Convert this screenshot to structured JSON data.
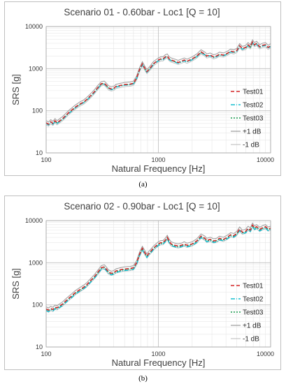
{
  "chart_data": [
    {
      "type": "line",
      "title": "Scenario 01 - 0.60bar - Loc1 [Q = 10]",
      "xlabel": "Natural Frequency [Hz]",
      "ylabel": "SRS [g]",
      "xscale": "log",
      "yscale": "log",
      "xlim": [
        100,
        10000
      ],
      "ylim": [
        10,
        10000
      ],
      "xticks": [
        "100",
        "1000",
        "10000"
      ],
      "yticks": [
        "10",
        "100",
        "1000",
        "10000"
      ],
      "grid": true,
      "legend_position": "right",
      "caption": "(a)",
      "x": [
        100,
        105,
        110,
        115,
        120,
        125,
        130,
        140,
        150,
        160,
        170,
        180,
        190,
        200,
        215,
        230,
        250,
        270,
        290,
        310,
        330,
        345,
        360,
        380,
        400,
        420,
        440,
        460,
        480,
        500,
        530,
        560,
        600,
        640,
        680,
        720,
        760,
        790,
        820,
        860,
        900,
        950,
        1000,
        1050,
        1100,
        1150,
        1200,
        1250,
        1300,
        1400,
        1500,
        1600,
        1700,
        1800,
        2000,
        2200,
        2400,
        2600,
        2700,
        2900,
        3100,
        3300,
        3500,
        3800,
        4100,
        4400,
        4700,
        5000,
        5300,
        5600,
        6000,
        6300,
        6600,
        6900,
        7200,
        7500,
        8000,
        8500,
        9000,
        9500,
        10000
      ],
      "series": [
        {
          "name": "Test01",
          "color": "#d62728",
          "dash": "5,3",
          "values": [
            52,
            48,
            55,
            50,
            58,
            52,
            56,
            65,
            78,
            92,
            105,
            120,
            132,
            145,
            160,
            185,
            230,
            285,
            360,
            440,
            450,
            400,
            350,
            330,
            340,
            380,
            390,
            400,
            410,
            420,
            425,
            430,
            450,
            600,
            950,
            1300,
            1000,
            850,
            950,
            1100,
            1300,
            1450,
            1600,
            1700,
            1700,
            1900,
            2000,
            1700,
            1600,
            1500,
            1400,
            1500,
            1600,
            1500,
            1700,
            2000,
            2500,
            2200,
            2000,
            2100,
            1900,
            2000,
            2200,
            2100,
            2300,
            2600,
            2500,
            2700,
            3500,
            3000,
            3200,
            3700,
            3300,
            4300,
            3700,
            4000,
            3300,
            3600,
            3700,
            3200,
            3500
          ]
        },
        {
          "name": "Test02",
          "color": "#17becf",
          "dash": "6,2,1,2",
          "values": [
            50,
            46,
            53,
            48,
            56,
            50,
            54,
            62,
            75,
            88,
            100,
            115,
            127,
            140,
            155,
            178,
            220,
            275,
            345,
            420,
            430,
            385,
            340,
            318,
            328,
            365,
            375,
            385,
            395,
            405,
            410,
            415,
            435,
            580,
            920,
            1250,
            960,
            820,
            910,
            1050,
            1250,
            1400,
            1530,
            1640,
            1640,
            1820,
            1920,
            1640,
            1540,
            1440,
            1350,
            1440,
            1540,
            1440,
            1630,
            1920,
            2400,
            2120,
            1920,
            2020,
            1830,
            1920,
            2110,
            2020,
            2210,
            2500,
            2400,
            2600,
            3360,
            2880,
            3070,
            3550,
            3170,
            4130,
            3550,
            3840,
            3170,
            3460,
            3550,
            3070,
            3360
          ]
        },
        {
          "name": "Test03",
          "color": "#1a9e50",
          "dash": "2,2",
          "values": [
            51,
            47,
            54,
            49,
            57,
            51,
            55,
            63,
            76,
            90,
            102,
            117,
            129,
            142,
            157,
            181,
            225,
            280,
            352,
            430,
            440,
            392,
            345,
            324,
            334,
            372,
            382,
            392,
            402,
            412,
            417,
            422,
            442,
            590,
            935,
            1275,
            980,
            835,
            930,
            1075,
            1275,
            1425,
            1565,
            1670,
            1670,
            1860,
            1960,
            1670,
            1570,
            1470,
            1375,
            1470,
            1570,
            1470,
            1665,
            1960,
            2450,
            2160,
            1960,
            2060,
            1865,
            1960,
            2155,
            2060,
            2255,
            2550,
            2450,
            2650,
            3430,
            2940,
            3135,
            3625,
            3235,
            4215,
            3625,
            3920,
            3235,
            3530,
            3625,
            3135,
            3430
          ]
        },
        {
          "name": "+1 dB",
          "color": "#9a9a9a",
          "dash": "",
          "offset_db": 1
        },
        {
          "name": "-1 dB",
          "color": "#c4c4c4",
          "dash": "",
          "offset_db": -1
        }
      ]
    },
    {
      "type": "line",
      "title": "Scenario 02 - 0.90bar - Loc1 [Q = 10]",
      "xlabel": "Natural Frequency [Hz]",
      "ylabel": "SRS [g]",
      "xscale": "log",
      "yscale": "log",
      "xlim": [
        100,
        10000
      ],
      "ylim": [
        10,
        10000
      ],
      "xticks": [
        "100",
        "1000",
        "10000"
      ],
      "yticks": [
        "10",
        "100",
        "1000",
        "10000"
      ],
      "grid": true,
      "legend_position": "right",
      "caption": "(b)",
      "x": [
        100,
        105,
        110,
        115,
        120,
        125,
        130,
        140,
        150,
        160,
        170,
        180,
        190,
        200,
        215,
        230,
        250,
        270,
        290,
        310,
        330,
        345,
        360,
        380,
        400,
        420,
        440,
        460,
        480,
        500,
        530,
        560,
        600,
        640,
        680,
        720,
        760,
        790,
        820,
        860,
        900,
        950,
        1000,
        1050,
        1100,
        1150,
        1200,
        1250,
        1300,
        1400,
        1500,
        1600,
        1700,
        1800,
        2000,
        2200,
        2400,
        2600,
        2700,
        2900,
        3100,
        3300,
        3500,
        3800,
        4100,
        4400,
        4700,
        5000,
        5300,
        5600,
        6000,
        6300,
        6600,
        6900,
        7200,
        7500,
        8000,
        8500,
        9000,
        9500,
        10000
      ],
      "series": [
        {
          "name": "Test01",
          "color": "#d62728",
          "dash": "5,3",
          "values": [
            80,
            75,
            82,
            78,
            88,
            85,
            92,
            105,
            125,
            145,
            165,
            190,
            210,
            230,
            260,
            300,
            380,
            470,
            600,
            760,
            800,
            700,
            600,
            560,
            580,
            640,
            660,
            680,
            700,
            710,
            720,
            730,
            760,
            1000,
            1600,
            2200,
            1700,
            1450,
            1650,
            1900,
            2200,
            2500,
            2800,
            3000,
            3000,
            3400,
            4000,
            3200,
            2800,
            2600,
            2500,
            2600,
            2800,
            2600,
            2800,
            3300,
            4300,
            3800,
            3400,
            3600,
            3300,
            3400,
            3800,
            3600,
            4000,
            4600,
            4400,
            5000,
            6300,
            5300,
            5600,
            6600,
            6000,
            7800,
            6700,
            7200,
            6200,
            6800,
            7200,
            6300,
            6600
          ]
        },
        {
          "name": "Test02",
          "color": "#17becf",
          "dash": "6,2,1,2",
          "values": [
            74,
            69,
            76,
            72,
            81,
            78,
            85,
            97,
            115,
            134,
            152,
            175,
            194,
            212,
            240,
            277,
            350,
            434,
            553,
            700,
            738,
            646,
            553,
            516,
            535,
            590,
            608,
            627,
            645,
            655,
            664,
            673,
            700,
            922,
            1475,
            2028,
            1567,
            1337,
            1521,
            1752,
            2028,
            2305,
            2582,
            2766,
            2766,
            3135,
            3688,
            2950,
            2582,
            2397,
            2305,
            2397,
            2582,
            2397,
            2582,
            3043,
            3964,
            3503,
            3135,
            3319,
            3043,
            3135,
            3503,
            3319,
            3688,
            4241,
            4057,
            4610,
            5808,
            4886,
            5163,
            6085,
            5532,
            7191,
            6177,
            6638,
            5716,
            6269,
            6638,
            5808,
            6085
          ]
        },
        {
          "name": "Test03",
          "color": "#1a9e50",
          "dash": "2,2",
          "values": [
            78,
            73,
            80,
            76,
            86,
            83,
            90,
            102,
            122,
            141,
            161,
            185,
            205,
            224,
            253,
            292,
            370,
            458,
            585,
            741,
            780,
            682,
            585,
            546,
            565,
            624,
            643,
            663,
            682,
            692,
            702,
            712,
            741,
            975,
            1560,
            2145,
            1657,
            1413,
            1608,
            1852,
            2145,
            2437,
            2730,
            2925,
            2925,
            3315,
            3900,
            3120,
            2730,
            2535,
            2437,
            2535,
            2730,
            2535,
            2730,
            3217,
            4192,
            3705,
            3315,
            3510,
            3217,
            3315,
            3705,
            3510,
            3900,
            4485,
            4290,
            4875,
            6142,
            5167,
            5460,
            6435,
            5850,
            7605,
            6532,
            7020,
            6045,
            6630,
            7020,
            6142,
            6435
          ]
        },
        {
          "name": "+1 dB",
          "color": "#9a9a9a",
          "dash": "",
          "offset_db": 1
        },
        {
          "name": "-1 dB",
          "color": "#c4c4c4",
          "dash": "",
          "offset_db": -1
        }
      ]
    }
  ]
}
